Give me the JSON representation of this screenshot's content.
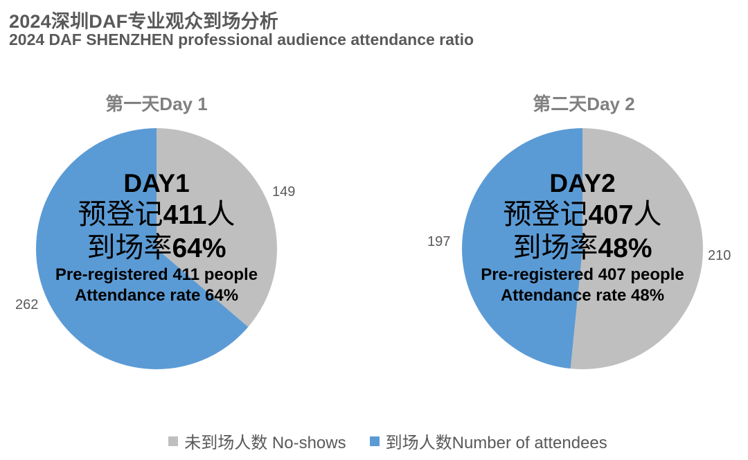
{
  "header": {
    "title_zh": "2024深圳DAF专业观众到场分析",
    "title_en": "2024 DAF SHENZHEN professional audience attendance ratio"
  },
  "colors": {
    "no_shows_gray": "#BFBFBF",
    "attendees_blue": "#5B9BD5",
    "heading_text": "#595959",
    "chart_title_text": "#808080",
    "data_label_text": "#595959",
    "center_text": "#000000"
  },
  "charts": [
    {
      "title": "第一天Day 1",
      "center": {
        "day_label": "DAY1",
        "zh_line1": {
          "prefix": "预登记",
          "value": "411",
          "suffix": "人"
        },
        "zh_line2": {
          "prefix": "到场率",
          "value": "64%"
        },
        "en_line1": "Pre-registered 411 people",
        "en_line2": "Attendance rate 64%"
      },
      "labels": {
        "no_shows": "149",
        "attendees": "262"
      }
    },
    {
      "title": "第二天Day 2",
      "center": {
        "day_label": "DAY2",
        "zh_line1": {
          "prefix": "预登记",
          "value": "407",
          "suffix": "人"
        },
        "zh_line2": {
          "prefix": "到场率",
          "value": "48%"
        },
        "en_line1": "Pre-registered 407 people",
        "en_line2": "Attendance rate 48%"
      },
      "labels": {
        "no_shows": "210",
        "attendees": "197"
      }
    }
  ],
  "legend": [
    {
      "label": "未到场人数 No-shows",
      "color": "#BFBFBF"
    },
    {
      "label": "到场人数Number of attendees",
      "color": "#5B9BD5"
    }
  ],
  "chart_data": [
    {
      "type": "pie",
      "title": "第一天Day 1",
      "start_angle_deg": 0,
      "direction": "clockwise",
      "total": 411,
      "slices": [
        {
          "name": "未到场人数 No-shows",
          "value": 149,
          "color": "#BFBFBF"
        },
        {
          "name": "到场人数 Number of attendees",
          "value": 262,
          "color": "#5B9BD5"
        }
      ],
      "annotations": [
        "DAY1",
        "预登记411人",
        "到场率64%",
        "Pre-registered 411 people",
        "Attendance rate 64%"
      ]
    },
    {
      "type": "pie",
      "title": "第二天Day 2",
      "start_angle_deg": 0,
      "direction": "clockwise",
      "total": 407,
      "slices": [
        {
          "name": "未到场人数 No-shows",
          "value": 210,
          "color": "#BFBFBF"
        },
        {
          "name": "到场人数 Number of attendees",
          "value": 197,
          "color": "#5B9BD5"
        }
      ],
      "annotations": [
        "DAY2",
        "预登记407人",
        "到场率48%",
        "Pre-registered 407 people",
        "Attendance rate 48%"
      ]
    }
  ]
}
